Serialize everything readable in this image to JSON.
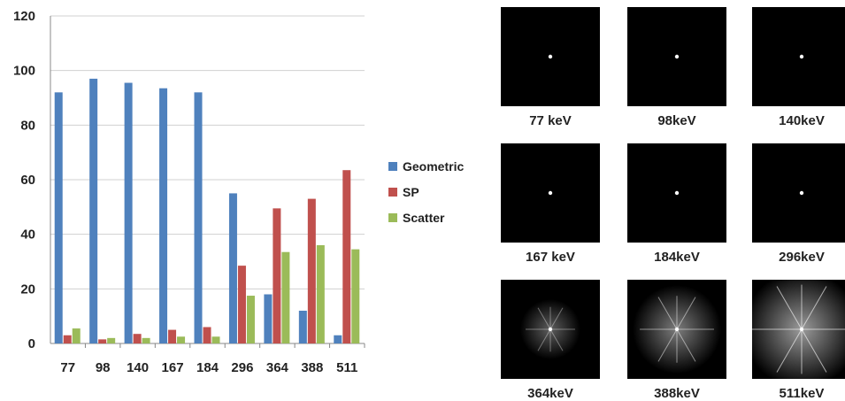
{
  "chart_data": {
    "type": "bar",
    "categories": [
      "77",
      "98",
      "140",
      "167",
      "184",
      "296",
      "364",
      "388",
      "511"
    ],
    "series": [
      {
        "name": "Geometric",
        "color": "#4f81bd",
        "values": [
          92,
          97,
          95.5,
          93.5,
          92,
          55,
          18,
          12,
          3
        ]
      },
      {
        "name": "SP",
        "color": "#c0504d",
        "values": [
          3,
          1.5,
          3.5,
          5,
          6,
          28.5,
          49.5,
          53,
          63.5
        ]
      },
      {
        "name": "Scatter",
        "color": "#9bbb59",
        "values": [
          5.5,
          2,
          2,
          2.5,
          2.5,
          17.5,
          33.5,
          36,
          34.5
        ]
      }
    ],
    "yticks": [
      "0",
      "20",
      "40",
      "60",
      "80",
      "100",
      "120"
    ],
    "ylim": [
      0,
      120
    ],
    "grid": true,
    "legend": "right"
  },
  "images": [
    {
      "label": "77 keV",
      "glow": 0
    },
    {
      "label": "98keV",
      "glow": 0
    },
    {
      "label": "140keV",
      "glow": 0
    },
    {
      "label": "167 keV",
      "glow": 0
    },
    {
      "label": "184keV",
      "glow": 0
    },
    {
      "label": "296keV",
      "glow": 0
    },
    {
      "label": "364keV",
      "glow": 1
    },
    {
      "label": "388keV",
      "glow": 2
    },
    {
      "label": "511keV",
      "glow": 3
    }
  ]
}
